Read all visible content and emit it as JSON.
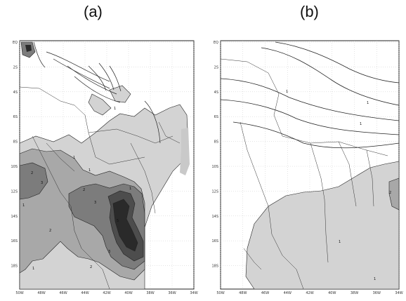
{
  "panels": [
    {
      "label": "(a)",
      "y_ticks": [
        "EQ",
        "2S",
        "4S",
        "6S",
        "8S",
        "10S",
        "12S",
        "14S",
        "16S",
        "18S"
      ],
      "x_ticks": [
        "50W",
        "48W",
        "46W",
        "44W",
        "42W",
        "40W",
        "38W",
        "36W",
        "34W"
      ],
      "contour_labels": [
        "1",
        "1",
        "2",
        "3",
        "1",
        "2",
        "3",
        "1",
        "2",
        "1",
        "5",
        "3",
        "1",
        "2"
      ]
    },
    {
      "label": "(b)",
      "y_ticks": [
        "EQ",
        "2S",
        "4S",
        "6S",
        "8S",
        "10S",
        "12S",
        "14S",
        "16S",
        "18S"
      ],
      "x_ticks": [
        "50W",
        "48W",
        "46W",
        "44W",
        "42W",
        "40W",
        "38W",
        "36W",
        "34W"
      ],
      "contour_labels": [
        "1",
        "1",
        "1",
        "1",
        "2",
        "1"
      ]
    }
  ],
  "colors": {
    "shade_1": "#d3d3d3",
    "shade_2": "#a8a8a8",
    "shade_3": "#7c7c7c",
    "shade_4": "#4d4d4d",
    "shade_5": "#2a2a2a",
    "line": "#222222",
    "grid": "#bdbdbd"
  }
}
